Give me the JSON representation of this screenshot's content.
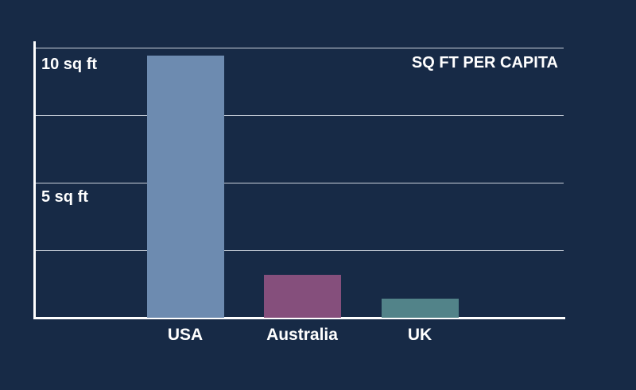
{
  "chart_data": {
    "type": "bar",
    "title": "SQ FT PER CAPITA",
    "categories": [
      "USA",
      "Australia",
      "UK"
    ],
    "values": [
      9.7,
      1.6,
      0.7
    ],
    "colors": [
      "#6d8bb0",
      "#854f7c",
      "#528389"
    ],
    "ylabel": "",
    "xlabel": "",
    "ylim": [
      0,
      10
    ],
    "y_tick_labels": [
      "10 sq ft",
      "5 sq ft"
    ],
    "grid": true
  },
  "background": "#172a46"
}
